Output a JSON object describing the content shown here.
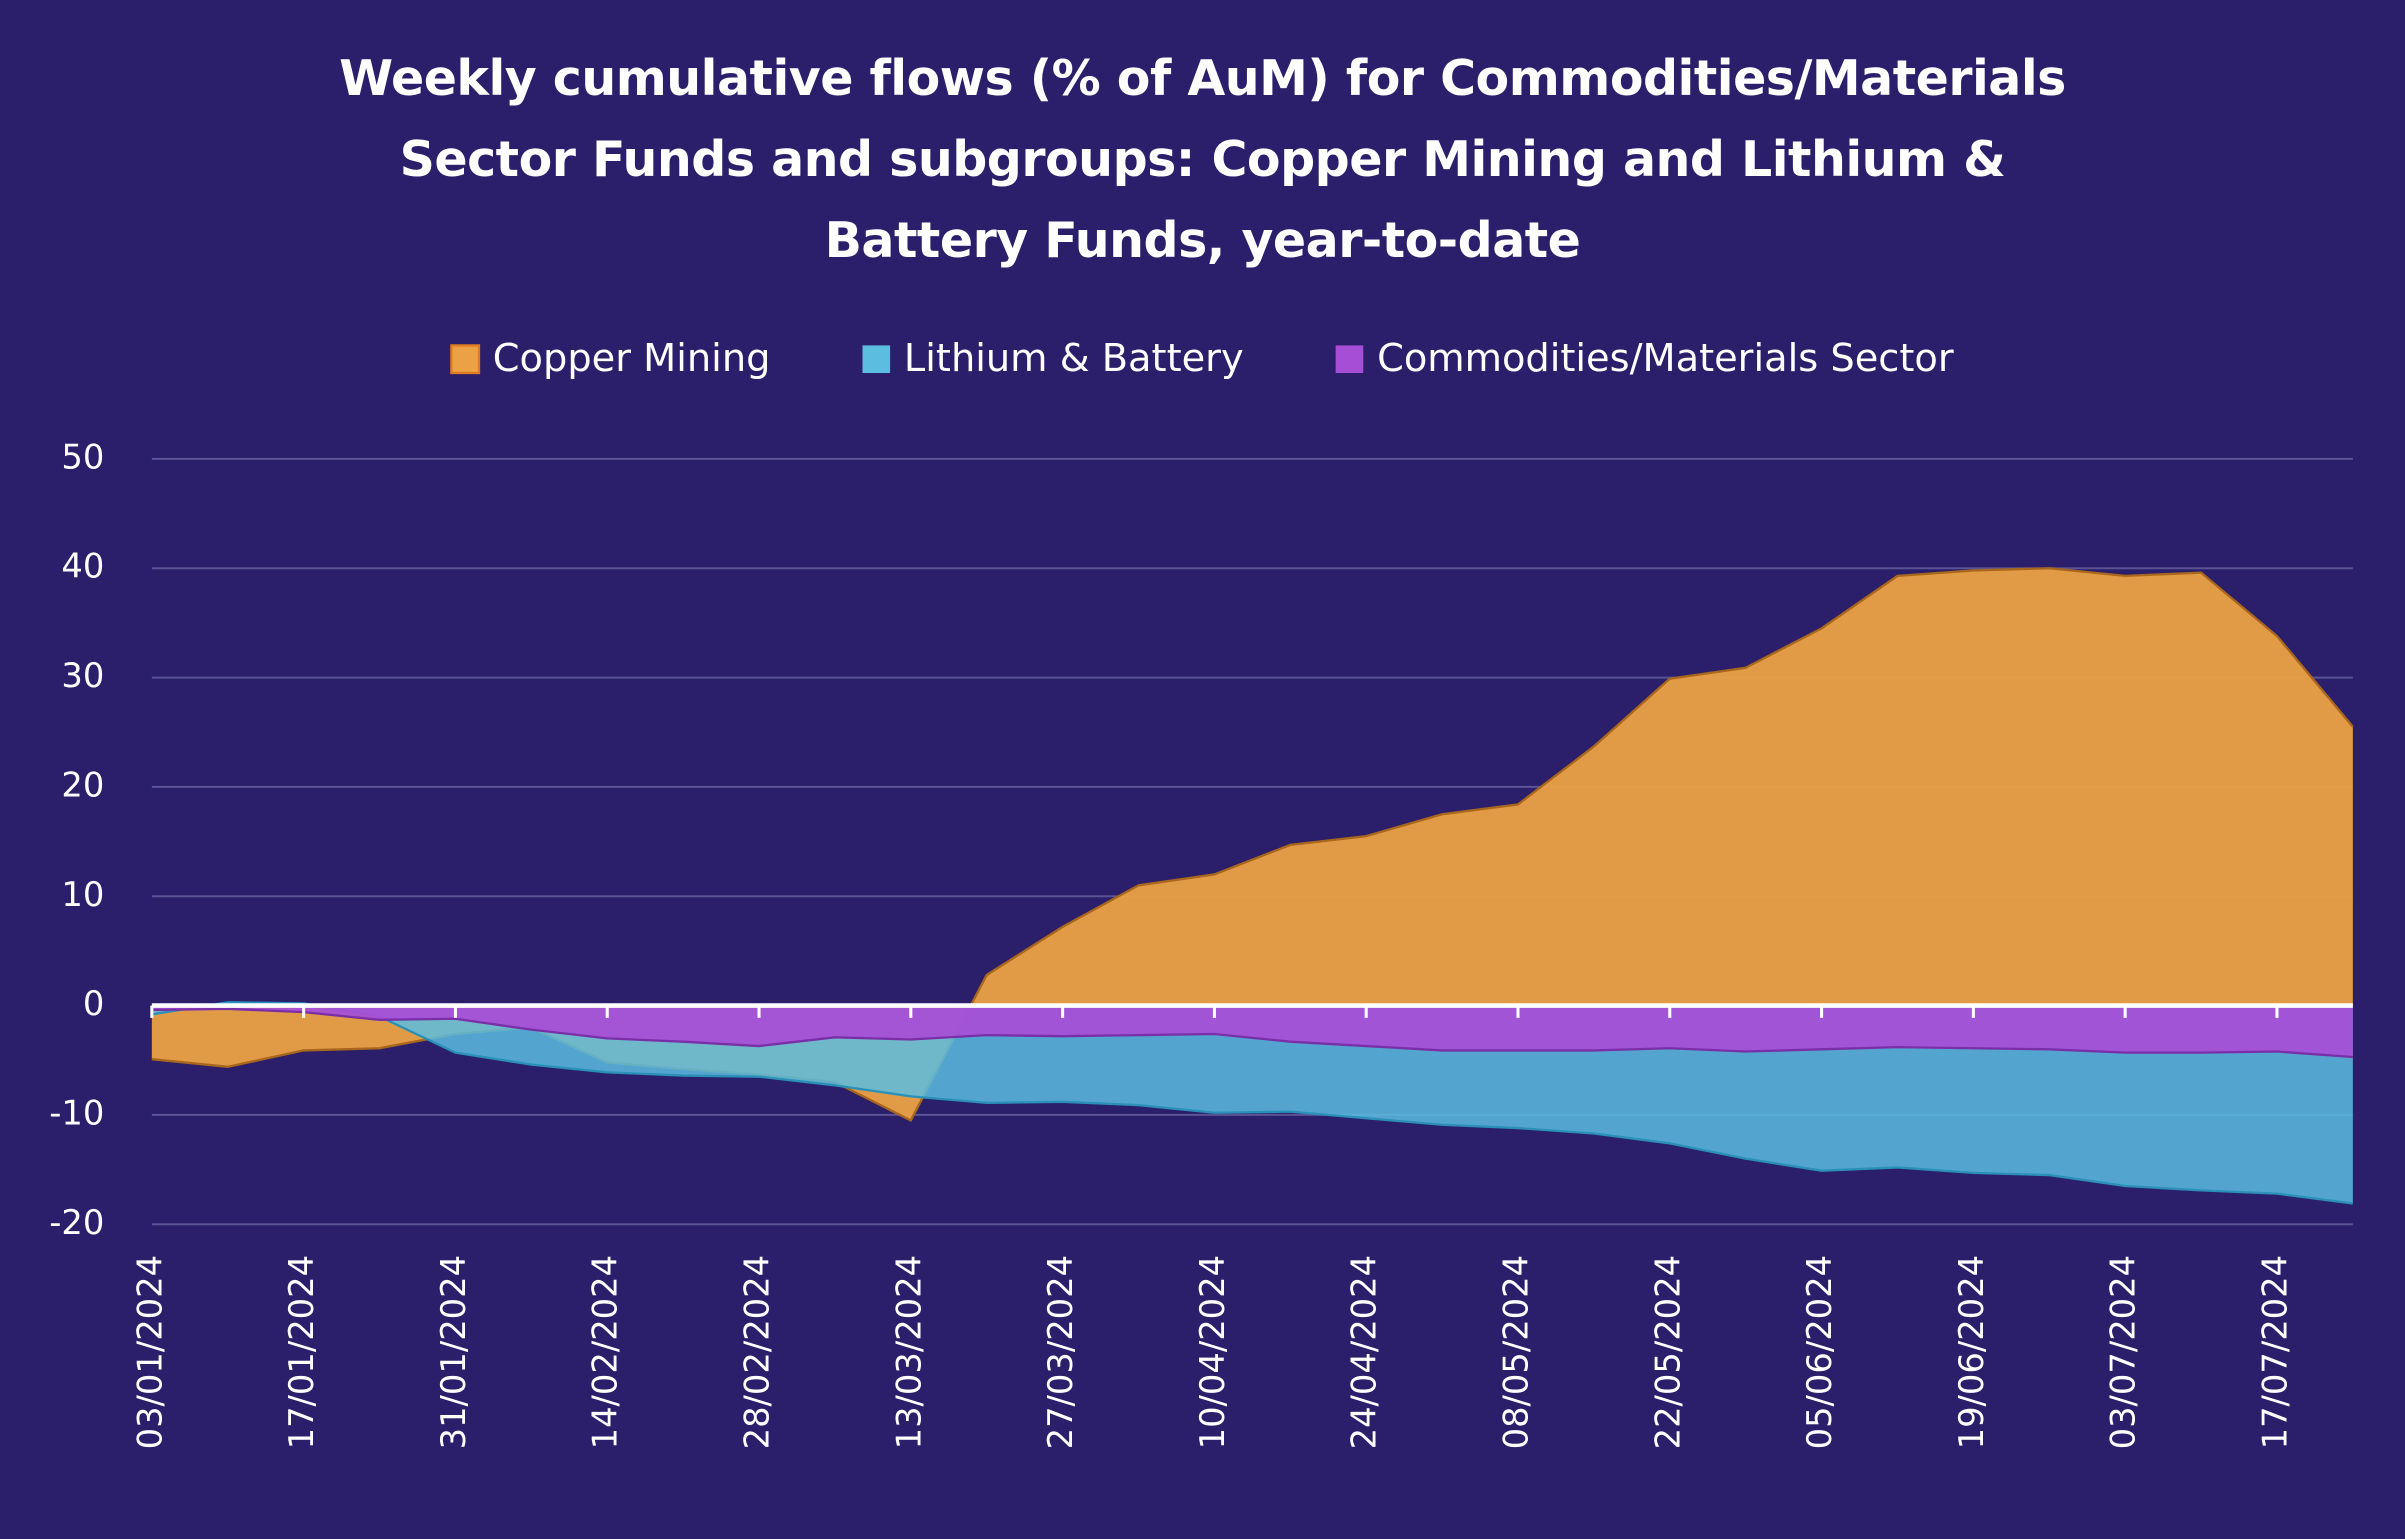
{
  "chart_data": {
    "type": "area",
    "title": "Weekly cumulative flows (% of AuM) for Commodities/Materials Sector Funds and subgroups: Copper Mining and Lithium & Battery Funds, year-to-date",
    "categories": [
      "03/01/2024",
      null,
      "17/01/2024",
      null,
      "31/01/2024",
      null,
      "14/02/2024",
      null,
      "28/02/2024",
      null,
      "13/03/2024",
      null,
      "27/03/2024",
      null,
      "10/04/2024",
      null,
      "24/04/2024",
      null,
      "08/05/2024",
      null,
      "22/05/2024",
      null,
      "05/06/2024",
      null,
      "19/06/2024",
      null,
      "03/07/2024",
      null,
      "17/07/2024",
      null
    ],
    "series": [
      {
        "name": "Copper Mining",
        "color": "#eba144",
        "values": [
          -4.9,
          -5.6,
          -4.1,
          -3.9,
          -2.6,
          -2.0,
          -5.2,
          -5.8,
          -6.3,
          -7.0,
          -10.5,
          2.8,
          7.2,
          11.0,
          12.0,
          14.7,
          15.5,
          17.5,
          18.4,
          23.7,
          29.9,
          30.9,
          34.5,
          39.3,
          39.8,
          40.0,
          39.3,
          39.6,
          33.8,
          25.5
        ]
      },
      {
        "name": "Lithium & Battery",
        "color": "#5bbde0",
        "values": [
          -0.8,
          0.3,
          0.2,
          -1.0,
          -4.3,
          -5.4,
          -6.1,
          -6.4,
          -6.5,
          -7.3,
          -8.3,
          -8.9,
          -8.8,
          -9.1,
          -9.8,
          -9.7,
          -10.3,
          -10.9,
          -11.2,
          -11.7,
          -12.6,
          -14.0,
          -15.1,
          -14.8,
          -15.3,
          -15.5,
          -16.5,
          -16.9,
          -17.2,
          -18.1
        ]
      },
      {
        "name": "Commodities/Materials Sector",
        "color": "#a64fd6",
        "values": [
          -0.4,
          -0.3,
          -0.6,
          -1.3,
          -1.2,
          -2.2,
          -3.0,
          -3.3,
          -3.7,
          -2.9,
          -3.1,
          -2.7,
          -2.8,
          -2.7,
          -2.6,
          -3.3,
          -3.7,
          -4.1,
          -4.1,
          -4.1,
          -3.9,
          -4.2,
          -4.0,
          -3.8,
          -3.9,
          -4.0,
          -4.3,
          -4.3,
          -4.2,
          -4.7
        ]
      }
    ],
    "ylim": [
      -20,
      50
    ],
    "yticks": [
      -20,
      -10,
      0,
      10,
      20,
      30,
      40,
      50
    ],
    "grid": true,
    "legend": "top"
  }
}
